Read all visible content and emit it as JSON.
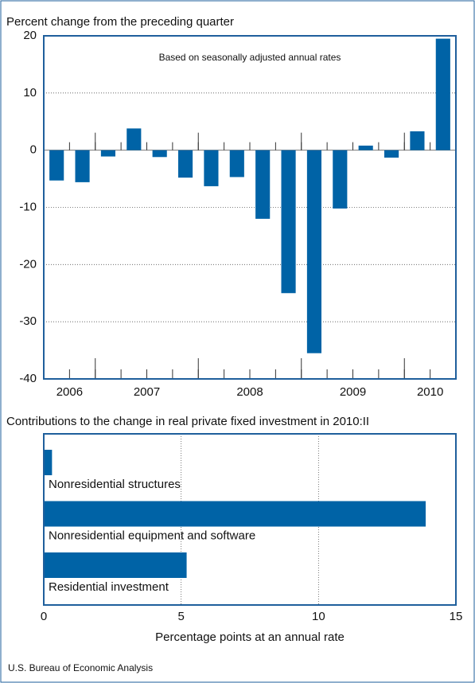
{
  "chart_data": [
    {
      "type": "bar",
      "title": "Percent change from the preceding quarter",
      "annotation": "Based on seasonally adjusted annual rates",
      "groups": [
        {
          "label": "2006",
          "quarters": 2
        },
        {
          "label": "2007",
          "quarters": 4
        },
        {
          "label": "2008",
          "quarters": 4
        },
        {
          "label": "2009",
          "quarters": 4
        },
        {
          "label": "2010",
          "quarters": 2
        }
      ],
      "values": [
        -5.3,
        -5.6,
        -1.1,
        3.8,
        -1.2,
        -4.8,
        -6.3,
        -4.7,
        -12,
        -25,
        -35.5,
        -10.2,
        0.8,
        -1.3,
        3.3,
        19.5
      ],
      "color": "#0063a6",
      "ylim": [
        -40,
        20
      ],
      "yticks": [
        -40,
        -30,
        -20,
        -10,
        0,
        10,
        20
      ],
      "grid": true
    },
    {
      "type": "hbar",
      "title": "Contributions to the change in real private fixed investment in 2010:II",
      "categories": [
        "Nonresidential structures",
        "Nonresidential equipment and software",
        "Residential investment"
      ],
      "values": [
        0.3,
        13.9,
        5.2
      ],
      "color": "#0063a6",
      "xlim": [
        0,
        15
      ],
      "xticks": [
        0,
        5,
        10,
        15
      ],
      "xlabel": "Percentage points at an annual rate",
      "grid": true
    }
  ],
  "source": "U.S. Bureau of Economic Analysis"
}
